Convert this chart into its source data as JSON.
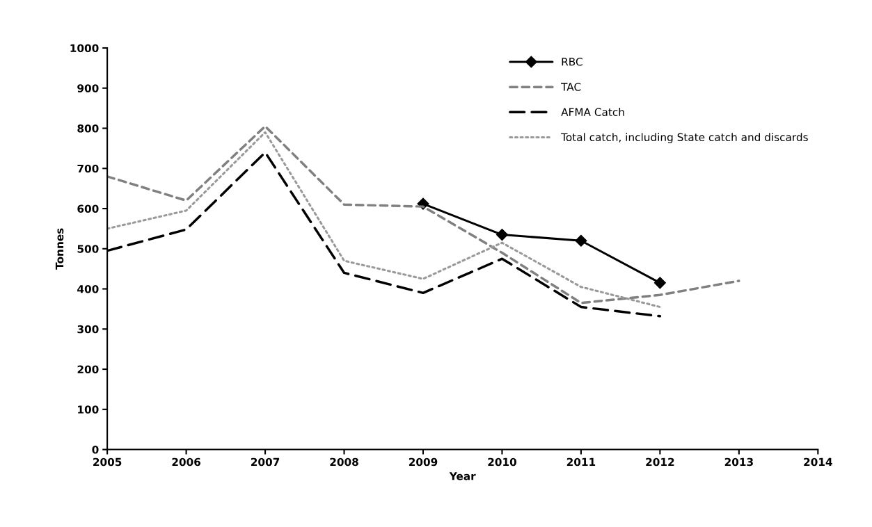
{
  "chart_data": {
    "type": "line",
    "xlabel": "Year",
    "ylabel": "Tonnes",
    "x": [
      2005,
      2006,
      2007,
      2008,
      2009,
      2010,
      2011,
      2012,
      2013
    ],
    "xlim": [
      2005,
      2014
    ],
    "xticks": [
      2005,
      2006,
      2007,
      2008,
      2009,
      2010,
      2011,
      2012,
      2013,
      2014
    ],
    "ylim": [
      0,
      1000
    ],
    "yticks": [
      0,
      100,
      200,
      300,
      400,
      500,
      600,
      700,
      800,
      900,
      1000
    ],
    "grid": false,
    "legend": "top right",
    "series": [
      {
        "name": "RBC",
        "color": "#000000",
        "marker": "diamond",
        "line_style": "solid",
        "values": [
          null,
          null,
          null,
          null,
          612,
          535,
          520,
          415,
          null
        ]
      },
      {
        "name": "TAC",
        "color": "#808080",
        "marker": "none",
        "line_style": "dashed",
        "values": [
          680,
          620,
          805,
          610,
          605,
          490,
          365,
          385,
          420
        ]
      },
      {
        "name": "AFMA Catch",
        "color": "#000000",
        "marker": "none",
        "line_style": "longdash",
        "values": [
          495,
          548,
          740,
          440,
          390,
          475,
          355,
          332,
          null
        ]
      },
      {
        "name": "Total catch, including State catch and discards",
        "color": "#999999",
        "marker": "none",
        "line_style": "dotted",
        "values": [
          550,
          595,
          790,
          470,
          425,
          515,
          405,
          355,
          null
        ]
      }
    ]
  }
}
